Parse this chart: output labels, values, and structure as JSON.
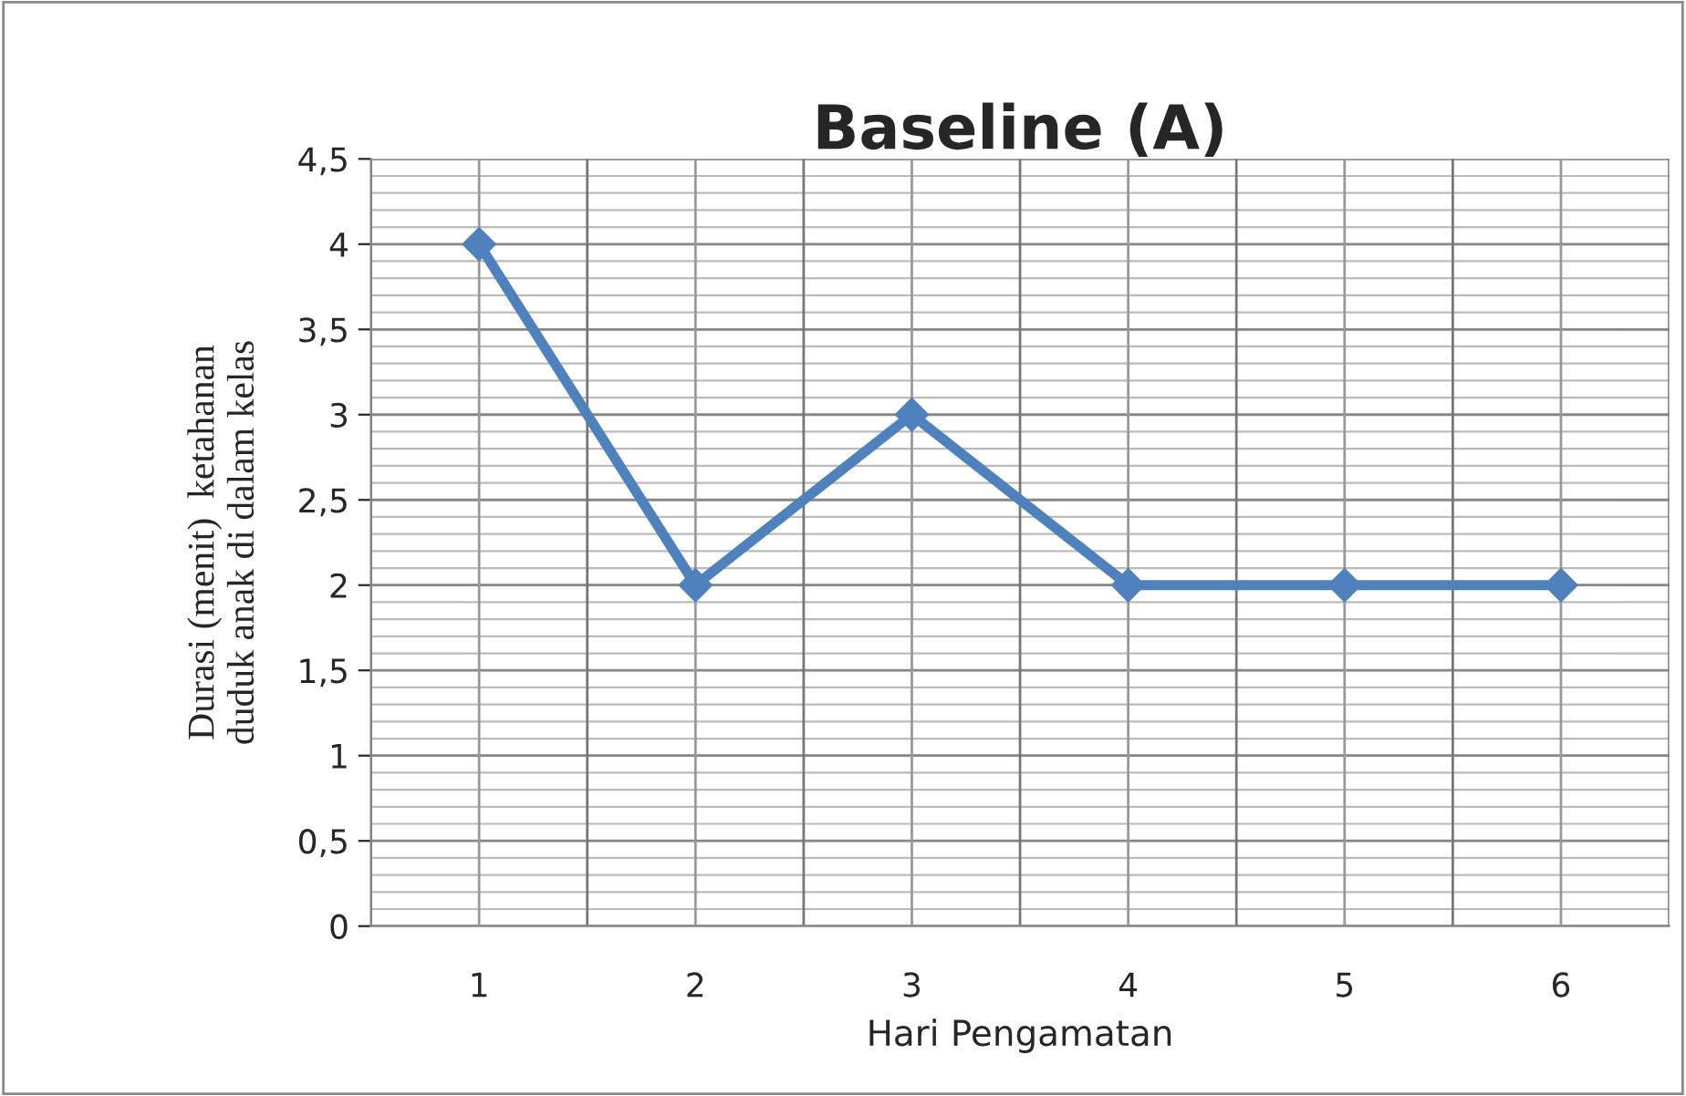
{
  "chart_data": {
    "type": "line",
    "title": "Baseline (A)",
    "xlabel": "Hari Pengamatan",
    "ylabel": "Durasi (menit)  ketahanan\nduduk anak di dalam kelas",
    "categories": [
      "1",
      "2",
      "3",
      "4",
      "5",
      "6"
    ],
    "series": [
      {
        "color": "#4f81bd",
        "values": [
          4,
          2,
          3,
          2,
          2,
          2
        ]
      }
    ],
    "ylim": [
      0,
      4.5
    ],
    "yticks": [
      0,
      {
        "value": 0.5,
        "label": "0,5"
      },
      1,
      {
        "value": 1.5,
        "label": "1,5"
      },
      2,
      {
        "value": 2.5,
        "label": "2,5"
      },
      3,
      {
        "value": 3.5,
        "label": "3,5"
      },
      4,
      {
        "value": 4.5,
        "label": "4,5"
      }
    ],
    "grid": true,
    "marker": "diamond",
    "line_style": "solid",
    "legend": false
  }
}
